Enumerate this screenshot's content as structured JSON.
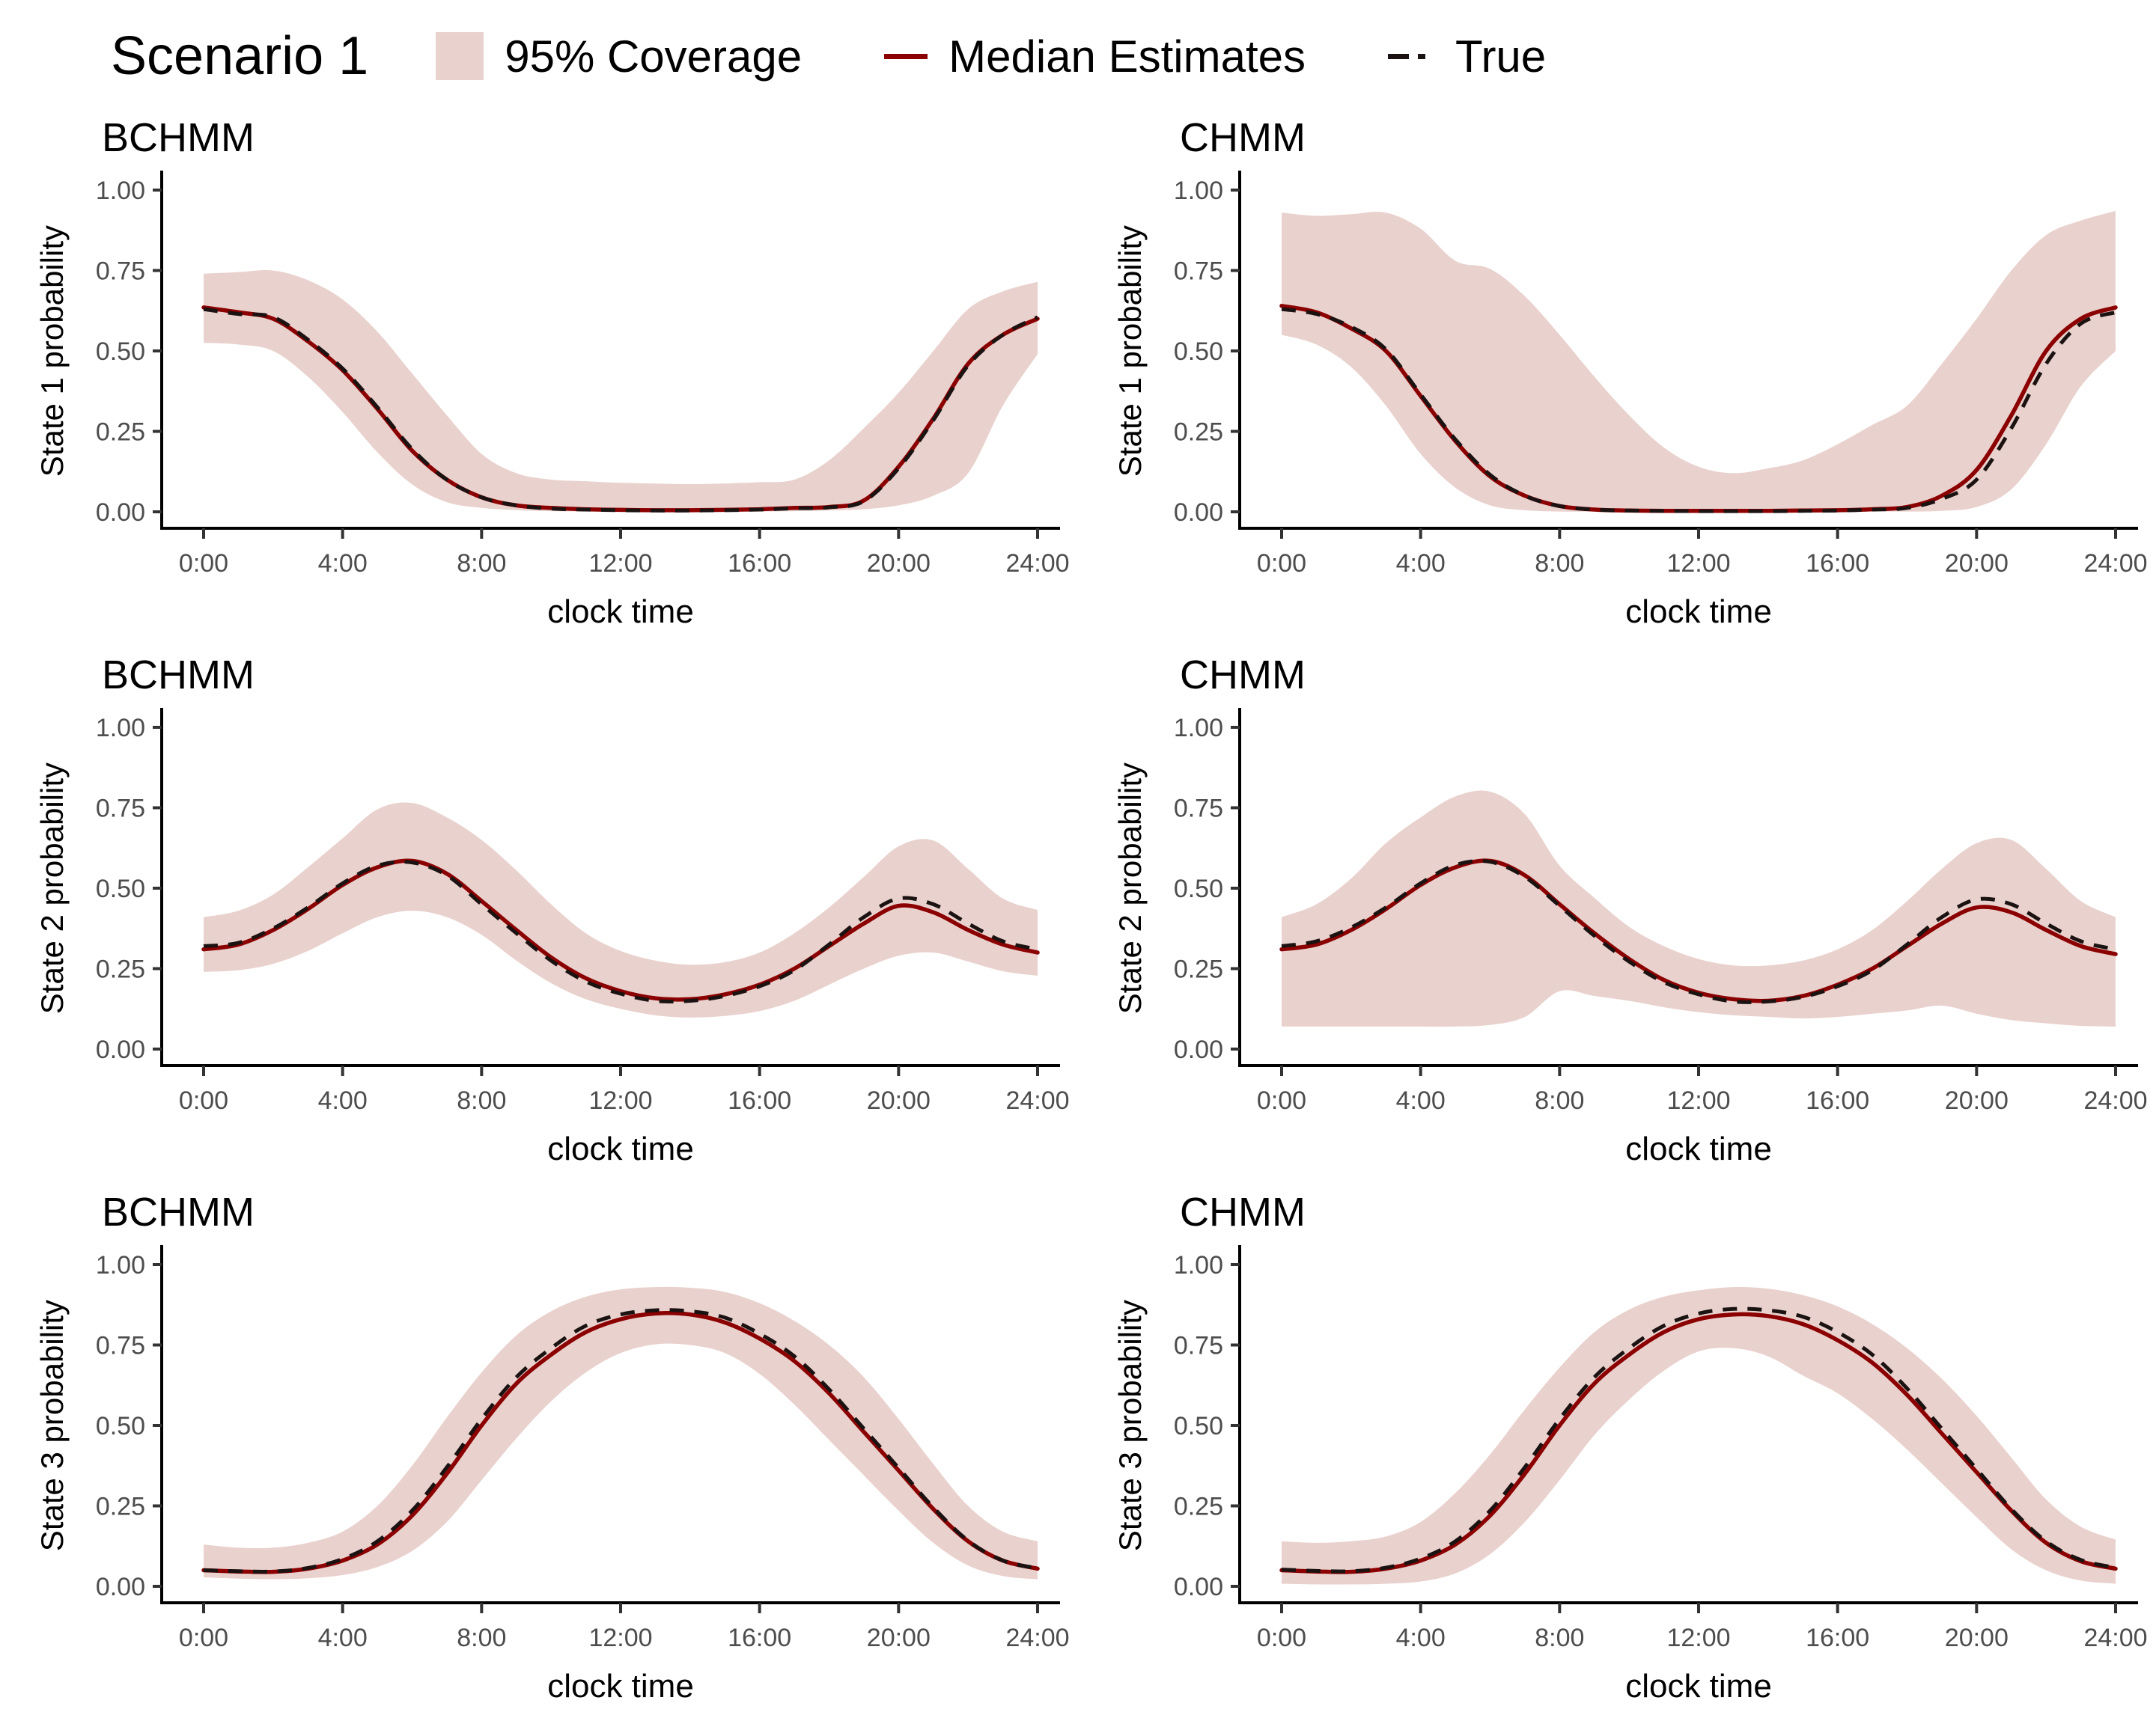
{
  "title": "Scenario 1",
  "legend": {
    "coverage": "95% Coverage",
    "median": "Median Estimates",
    "true": "True"
  },
  "colors": {
    "band": "#e9d1cd",
    "median": "#8b0000",
    "true_line": "#1b1212",
    "axis": "#000000",
    "tick": "#333333",
    "tick_label": "#4d4d4d"
  },
  "chart_data": {
    "type": "line",
    "grid": false,
    "legend_position": "top",
    "xlabel": "clock time",
    "ylim": [
      0,
      1
    ],
    "x_hours": [
      0,
      1,
      2,
      3,
      4,
      5,
      6,
      7,
      8,
      9,
      10,
      11,
      12,
      13,
      14,
      15,
      16,
      17,
      18,
      19,
      20,
      21,
      22,
      23,
      24
    ],
    "xtick_hours": [
      0,
      4,
      8,
      12,
      16,
      20,
      24
    ],
    "xtick_labels": [
      "0:00",
      "4:00",
      "8:00",
      "12:00",
      "16:00",
      "20:00",
      "24:00"
    ],
    "ytick_values": [
      0,
      0.25,
      0.5,
      0.75,
      1
    ],
    "ytick_labels": [
      "0.00",
      "0.25",
      "0.50",
      "0.75",
      "1.00"
    ],
    "series_names": [
      "95% Coverage",
      "Median Estimates",
      "True"
    ],
    "panels": [
      {
        "model": "BCHMM",
        "state": "State 1",
        "ylabel": "State 1 probability",
        "median": [
          0.635,
          0.62,
          0.6,
          0.53,
          0.44,
          0.32,
          0.19,
          0.1,
          0.045,
          0.02,
          0.012,
          0.008,
          0.006,
          0.005,
          0.005,
          0.006,
          0.008,
          0.012,
          0.015,
          0.035,
          0.14,
          0.29,
          0.46,
          0.55,
          0.6
        ],
        "true": [
          0.63,
          0.615,
          0.605,
          0.535,
          0.445,
          0.325,
          0.195,
          0.1,
          0.045,
          0.02,
          0.01,
          0.007,
          0.005,
          0.004,
          0.004,
          0.005,
          0.007,
          0.011,
          0.014,
          0.033,
          0.135,
          0.285,
          0.455,
          0.55,
          0.605
        ],
        "upper95": [
          0.74,
          0.745,
          0.75,
          0.72,
          0.66,
          0.56,
          0.43,
          0.3,
          0.18,
          0.12,
          0.1,
          0.095,
          0.09,
          0.088,
          0.086,
          0.088,
          0.092,
          0.1,
          0.16,
          0.26,
          0.37,
          0.5,
          0.63,
          0.685,
          0.715
        ],
        "lower95": [
          0.525,
          0.52,
          0.5,
          0.42,
          0.31,
          0.185,
          0.085,
          0.03,
          0.012,
          0.005,
          0.002,
          0.001,
          0.001,
          0.001,
          0.001,
          0.001,
          0.001,
          0.002,
          0.004,
          0.008,
          0.02,
          0.05,
          0.12,
          0.33,
          0.49
        ]
      },
      {
        "model": "CHMM",
        "state": "State 1",
        "ylabel": "State 1 probability",
        "median": [
          0.64,
          0.62,
          0.57,
          0.5,
          0.36,
          0.22,
          0.11,
          0.05,
          0.018,
          0.007,
          0.004,
          0.003,
          0.003,
          0.003,
          0.003,
          0.004,
          0.005,
          0.008,
          0.015,
          0.05,
          0.13,
          0.3,
          0.5,
          0.6,
          0.635
        ],
        "true": [
          0.63,
          0.615,
          0.575,
          0.505,
          0.365,
          0.225,
          0.115,
          0.05,
          0.018,
          0.007,
          0.004,
          0.003,
          0.002,
          0.002,
          0.002,
          0.003,
          0.004,
          0.007,
          0.012,
          0.04,
          0.1,
          0.26,
          0.46,
          0.585,
          0.62
        ],
        "upper95": [
          0.93,
          0.92,
          0.925,
          0.93,
          0.88,
          0.78,
          0.755,
          0.67,
          0.55,
          0.42,
          0.3,
          0.2,
          0.14,
          0.12,
          0.135,
          0.16,
          0.21,
          0.27,
          0.33,
          0.46,
          0.6,
          0.75,
          0.86,
          0.905,
          0.935
        ],
        "lower95": [
          0.55,
          0.52,
          0.45,
          0.33,
          0.18,
          0.075,
          0.02,
          0.005,
          0.001,
          0.001,
          0.001,
          0.001,
          0.001,
          0.001,
          0.001,
          0.001,
          0.001,
          0.001,
          0.001,
          0.003,
          0.015,
          0.07,
          0.21,
          0.39,
          0.5
        ]
      },
      {
        "model": "BCHMM",
        "state": "State 2",
        "ylabel": "State 2 probability",
        "median": [
          0.31,
          0.325,
          0.37,
          0.435,
          0.51,
          0.565,
          0.585,
          0.545,
          0.46,
          0.37,
          0.285,
          0.22,
          0.18,
          0.158,
          0.155,
          0.17,
          0.2,
          0.25,
          0.32,
          0.39,
          0.445,
          0.425,
          0.37,
          0.325,
          0.3
        ],
        "true": [
          0.32,
          0.33,
          0.375,
          0.44,
          0.515,
          0.57,
          0.58,
          0.54,
          0.45,
          0.36,
          0.275,
          0.21,
          0.172,
          0.15,
          0.15,
          0.165,
          0.195,
          0.245,
          0.325,
          0.41,
          0.468,
          0.45,
          0.39,
          0.335,
          0.31
        ],
        "upper95": [
          0.41,
          0.43,
          0.48,
          0.565,
          0.655,
          0.745,
          0.765,
          0.72,
          0.65,
          0.555,
          0.45,
          0.36,
          0.305,
          0.275,
          0.262,
          0.27,
          0.3,
          0.36,
          0.44,
          0.535,
          0.63,
          0.648,
          0.56,
          0.468,
          0.432
        ],
        "lower95": [
          0.24,
          0.245,
          0.265,
          0.305,
          0.36,
          0.41,
          0.43,
          0.41,
          0.355,
          0.275,
          0.205,
          0.155,
          0.125,
          0.105,
          0.098,
          0.103,
          0.118,
          0.15,
          0.2,
          0.25,
          0.29,
          0.3,
          0.272,
          0.242,
          0.228
        ]
      },
      {
        "model": "CHMM",
        "state": "State 2",
        "ylabel": "State 2 probability",
        "median": [
          0.31,
          0.325,
          0.37,
          0.435,
          0.51,
          0.565,
          0.585,
          0.54,
          0.45,
          0.36,
          0.28,
          0.215,
          0.175,
          0.155,
          0.15,
          0.165,
          0.2,
          0.25,
          0.32,
          0.39,
          0.44,
          0.425,
          0.37,
          0.32,
          0.295
        ],
        "true": [
          0.32,
          0.335,
          0.378,
          0.44,
          0.515,
          0.572,
          0.582,
          0.535,
          0.445,
          0.352,
          0.272,
          0.208,
          0.17,
          0.148,
          0.148,
          0.162,
          0.195,
          0.245,
          0.325,
          0.41,
          0.465,
          0.45,
          0.39,
          0.335,
          0.31
        ],
        "upper95": [
          0.41,
          0.45,
          0.53,
          0.64,
          0.72,
          0.785,
          0.8,
          0.73,
          0.57,
          0.47,
          0.38,
          0.32,
          0.28,
          0.26,
          0.26,
          0.275,
          0.31,
          0.37,
          0.46,
          0.56,
          0.64,
          0.65,
          0.56,
          0.46,
          0.41
        ],
        "lower95": [
          0.07,
          0.07,
          0.07,
          0.07,
          0.07,
          0.07,
          0.075,
          0.1,
          0.18,
          0.165,
          0.15,
          0.13,
          0.115,
          0.105,
          0.1,
          0.095,
          0.1,
          0.11,
          0.12,
          0.135,
          0.11,
          0.09,
          0.08,
          0.072,
          0.07
        ]
      },
      {
        "model": "BCHMM",
        "state": "State 3",
        "ylabel": "State 3 probability",
        "median": [
          0.05,
          0.046,
          0.045,
          0.055,
          0.08,
          0.13,
          0.22,
          0.35,
          0.5,
          0.63,
          0.72,
          0.79,
          0.83,
          0.848,
          0.845,
          0.82,
          0.77,
          0.7,
          0.6,
          0.48,
          0.36,
          0.24,
          0.14,
          0.08,
          0.055
        ],
        "true": [
          0.05,
          0.047,
          0.046,
          0.057,
          0.085,
          0.14,
          0.235,
          0.37,
          0.52,
          0.65,
          0.74,
          0.81,
          0.845,
          0.858,
          0.855,
          0.835,
          0.785,
          0.715,
          0.612,
          0.49,
          0.368,
          0.245,
          0.142,
          0.08,
          0.056
        ],
        "upper95": [
          0.13,
          0.12,
          0.12,
          0.135,
          0.17,
          0.25,
          0.375,
          0.525,
          0.665,
          0.78,
          0.855,
          0.9,
          0.923,
          0.93,
          0.928,
          0.915,
          0.88,
          0.825,
          0.75,
          0.65,
          0.52,
          0.38,
          0.25,
          0.17,
          0.14
        ],
        "lower95": [
          0.028,
          0.024,
          0.022,
          0.025,
          0.035,
          0.06,
          0.11,
          0.2,
          0.33,
          0.46,
          0.575,
          0.665,
          0.725,
          0.752,
          0.75,
          0.725,
          0.66,
          0.565,
          0.455,
          0.345,
          0.235,
          0.135,
          0.065,
          0.032,
          0.022
        ]
      },
      {
        "model": "CHMM",
        "state": "State 3",
        "ylabel": "State 3 probability",
        "median": [
          0.05,
          0.046,
          0.045,
          0.055,
          0.08,
          0.13,
          0.22,
          0.35,
          0.5,
          0.63,
          0.72,
          0.79,
          0.83,
          0.845,
          0.84,
          0.815,
          0.765,
          0.695,
          0.595,
          0.475,
          0.355,
          0.235,
          0.135,
          0.078,
          0.055
        ],
        "true": [
          0.052,
          0.048,
          0.047,
          0.058,
          0.086,
          0.14,
          0.235,
          0.37,
          0.52,
          0.65,
          0.74,
          0.81,
          0.848,
          0.862,
          0.858,
          0.838,
          0.79,
          0.72,
          0.615,
          0.49,
          0.365,
          0.24,
          0.14,
          0.082,
          0.058
        ],
        "upper95": [
          0.14,
          0.135,
          0.14,
          0.155,
          0.2,
          0.29,
          0.41,
          0.55,
          0.68,
          0.79,
          0.86,
          0.9,
          0.92,
          0.93,
          0.925,
          0.905,
          0.87,
          0.815,
          0.74,
          0.645,
          0.53,
          0.4,
          0.27,
          0.185,
          0.145
        ],
        "lower95": [
          0.008,
          0.006,
          0.006,
          0.008,
          0.015,
          0.04,
          0.1,
          0.2,
          0.33,
          0.47,
          0.58,
          0.67,
          0.73,
          0.74,
          0.715,
          0.655,
          0.6,
          0.52,
          0.425,
          0.32,
          0.215,
          0.115,
          0.05,
          0.018,
          0.008
        ]
      }
    ]
  }
}
